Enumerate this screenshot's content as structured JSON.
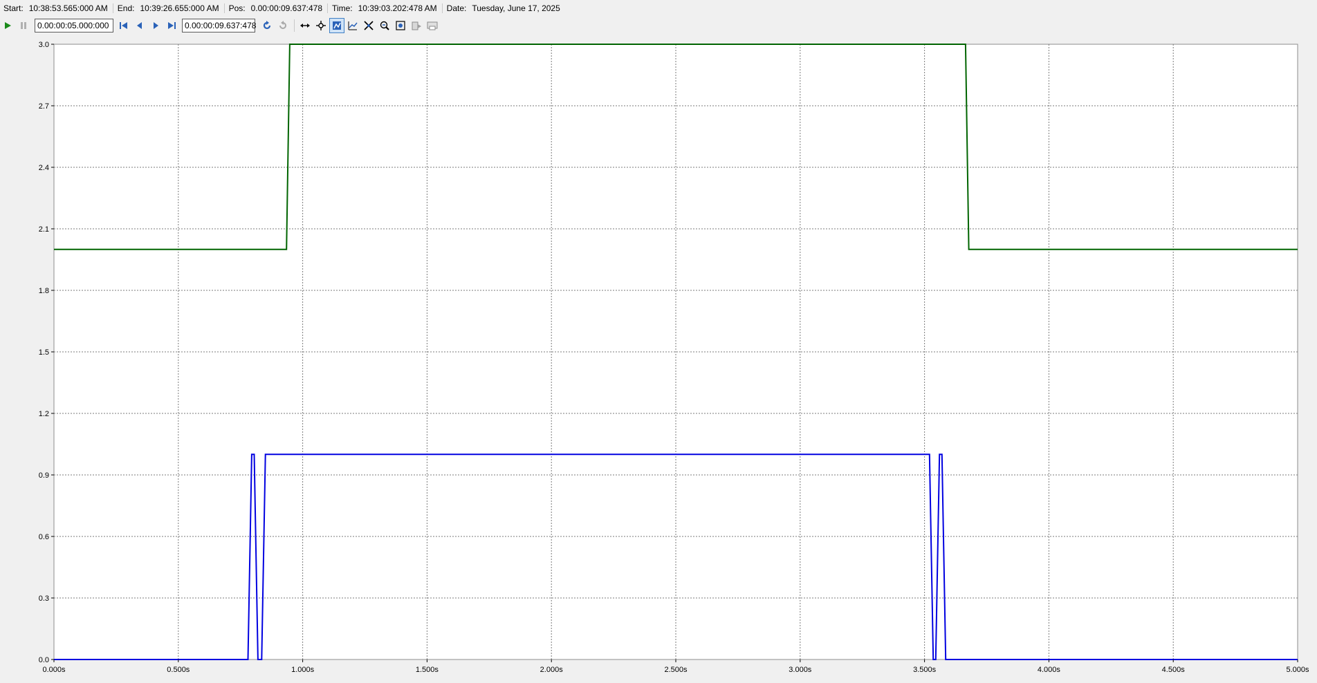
{
  "infobar": {
    "start_label": "Start:",
    "start_value": "10:38:53.565:000 AM",
    "end_label": "End:",
    "end_value": "10:39:26.655:000 AM",
    "pos_label": "Pos:",
    "pos_value": "0.00:00:09.637:478",
    "time_label": "Time:",
    "time_value": "10:39:03.202:478 AM",
    "date_label": "Date:",
    "date_value": "Tuesday, June 17, 2025"
  },
  "toolbar": {
    "duration_value": "0.00:00:05.000:000",
    "position_value": "0.00:00:09.637:478",
    "icons": [
      "play-icon",
      "pause-icon",
      "skip-to-start-icon",
      "step-back-icon",
      "step-forward-icon",
      "skip-to-end-icon",
      "refresh-icon",
      "refresh-disabled-icon",
      "horizontal-pan-icon",
      "pan-icon",
      "zoom-x-icon",
      "zoom-y-icon",
      "auto-scale-icon",
      "zoom-out-icon",
      "zoom-fit-icon",
      "export-icon",
      "print-icon"
    ]
  },
  "chart_data": {
    "type": "line",
    "xlim": [
      0,
      5
    ],
    "ylim": [
      0,
      3
    ],
    "grid": true,
    "x_ticks": [
      0,
      0.5,
      1,
      1.5,
      2,
      2.5,
      3,
      3.5,
      4,
      4.5,
      5
    ],
    "x_tick_labels": [
      "0.000s",
      "0.500s",
      "1.000s",
      "1.500s",
      "2.000s",
      "2.500s",
      "3.000s",
      "3.500s",
      "4.000s",
      "4.500s",
      "5.000s"
    ],
    "y_ticks": [
      0,
      0.3,
      0.6,
      0.9,
      1.2,
      1.5,
      1.8,
      2.1,
      2.4,
      2.7,
      3.0
    ],
    "y_tick_labels": [
      "0.0",
      "0.3",
      "0.6",
      "0.9",
      "1.2",
      "1.5",
      "1.8",
      "2.1",
      "2.4",
      "2.7",
      "3.0"
    ],
    "series": [
      {
        "color": "#006400",
        "x": [
          0,
          0.935,
          0.948,
          3.665,
          3.678,
          5
        ],
        "y": [
          2,
          2,
          3,
          3,
          2,
          2
        ]
      },
      {
        "color": "#0000e0",
        "x": [
          0,
          0.78,
          0.795,
          0.805,
          0.82,
          0.835,
          0.85,
          3.52,
          3.535,
          3.545,
          3.56,
          3.57,
          3.585,
          5
        ],
        "y": [
          0,
          0,
          1,
          1,
          0,
          0,
          1,
          1,
          0,
          0,
          1,
          1,
          0,
          0
        ]
      }
    ]
  }
}
